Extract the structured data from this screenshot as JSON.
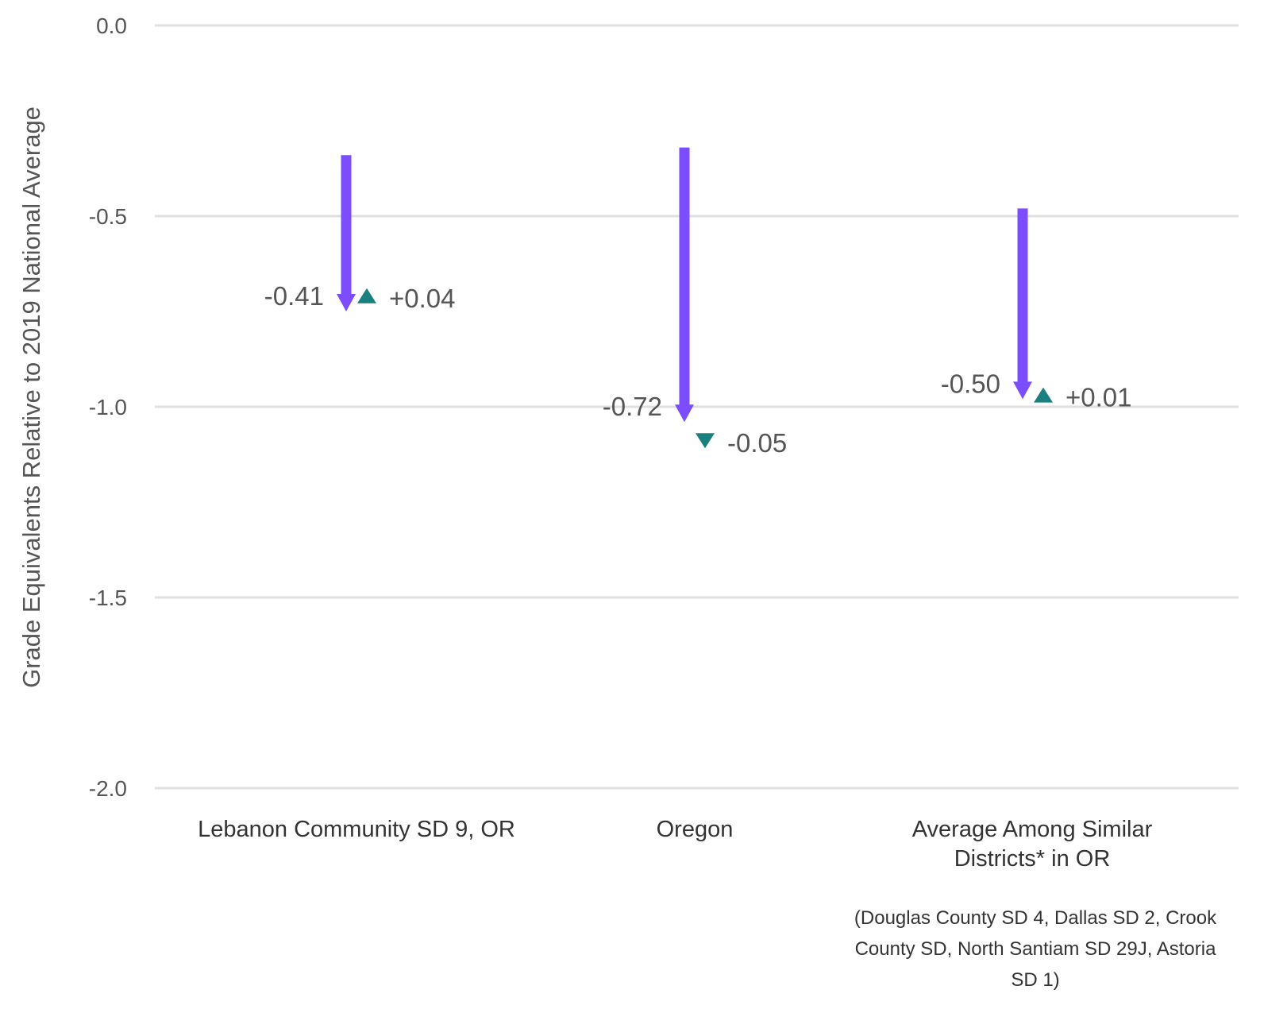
{
  "chart_data": {
    "type": "arrow",
    "ylabel": "Grade Equivalents Relative to 2019 National Average",
    "ylim": [
      -2.0,
      0.0
    ],
    "yticks": [
      "0.0",
      "-0.5",
      "-1.0",
      "-1.5",
      "-2.0"
    ],
    "grid": true,
    "colors": {
      "decline": "#7b4dff",
      "recovery": "#1a7f7f",
      "grid": "#e0e0e0"
    },
    "groups": [
      {
        "category_lines": [
          "Lebanon Community SD 9, OR"
        ],
        "start": -0.34,
        "end": -0.75,
        "decline_label": "-0.41",
        "recovery_end": -0.71,
        "recovery_label": "+0.04"
      },
      {
        "category_lines": [
          "Oregon"
        ],
        "start": -0.32,
        "end": -1.04,
        "decline_label": "-0.72",
        "recovery_end": -1.09,
        "recovery_label": "-0.05"
      },
      {
        "category_lines": [
          "Average Among Similar",
          "Districts* in OR"
        ],
        "start": -0.48,
        "end": -0.98,
        "decline_label": "-0.50",
        "recovery_end": -0.97,
        "recovery_label": "+0.01"
      }
    ],
    "footnote_lines": [
      "(Douglas County SD 4, Dallas SD 2, Crook",
      "County SD, North Santiam SD 29J, Astoria",
      "SD 1)"
    ]
  }
}
